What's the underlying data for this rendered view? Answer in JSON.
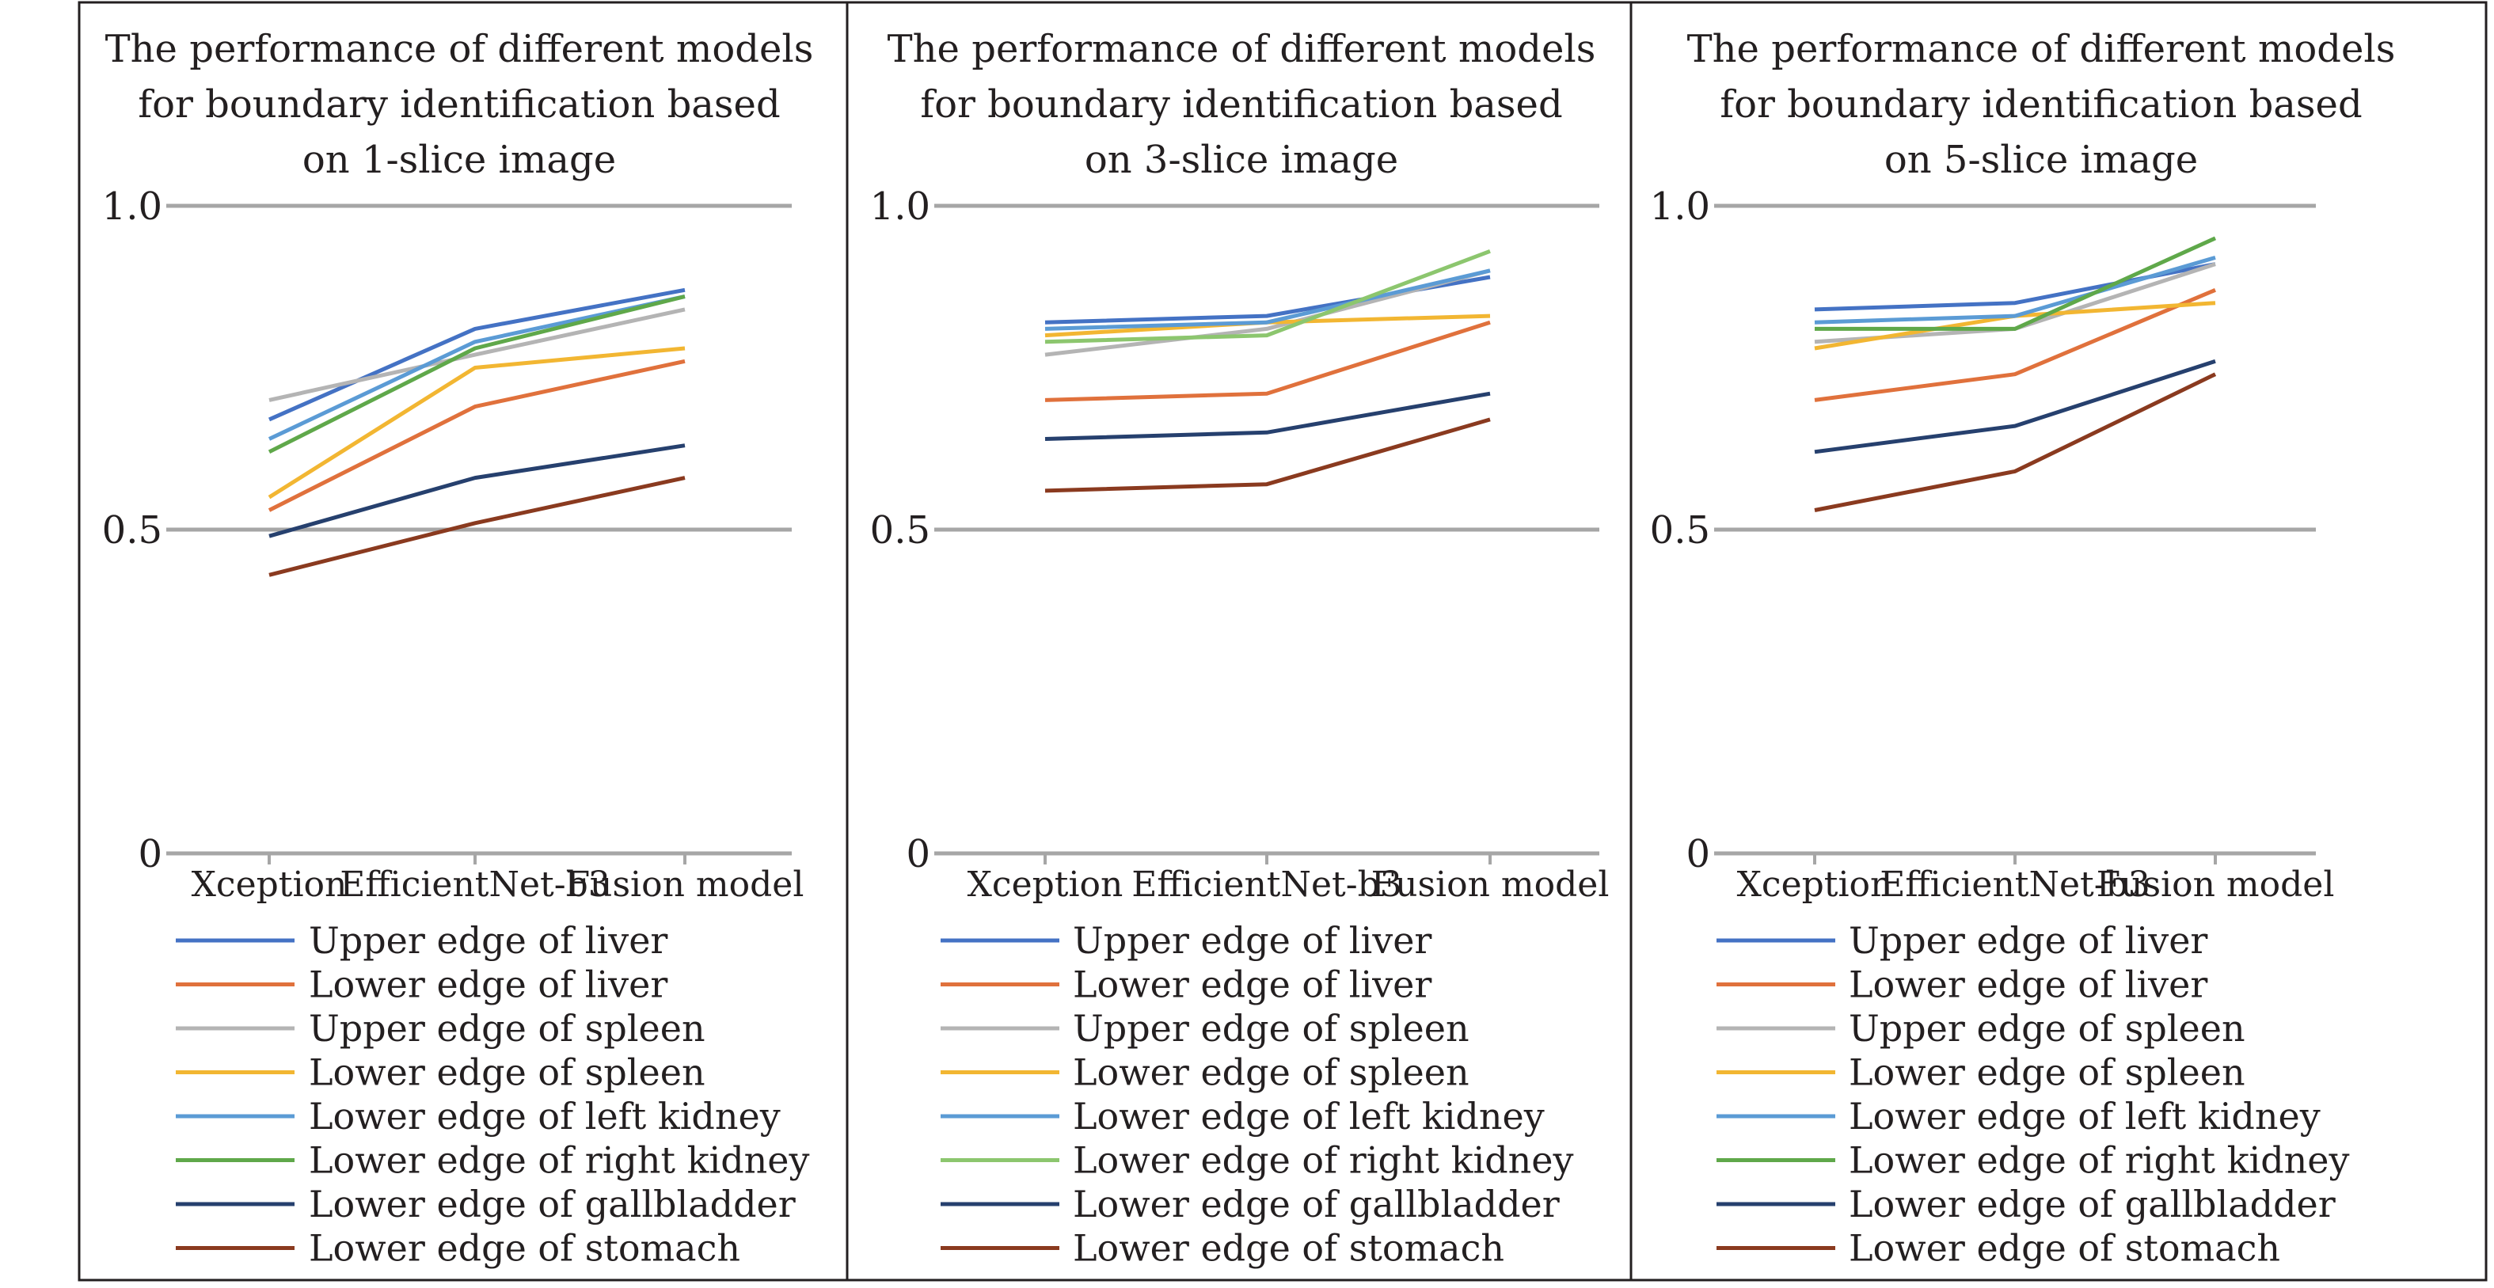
{
  "chart_data": [
    {
      "type": "line",
      "title_lines": [
        "The performance of different models",
        "for boundary identification based",
        "on 1-slice image"
      ],
      "categories": [
        "Xception",
        "EfficientNet-b3",
        "Fusion model"
      ],
      "ylim": [
        0,
        1.0
      ],
      "yticks": [
        "0",
        "0.5",
        "1.0"
      ],
      "grid": true,
      "legend_position": "bottom",
      "series": [
        {
          "name": "Upper edge of liver",
          "color": "#4472c4",
          "values": [
            0.67,
            0.81,
            0.87
          ]
        },
        {
          "name": "Lower edge of liver",
          "color": "#e0713c",
          "values": [
            0.53,
            0.69,
            0.76
          ]
        },
        {
          "name": "Upper edge of spleen",
          "color": "#b4b4b4",
          "values": [
            0.7,
            0.77,
            0.84
          ]
        },
        {
          "name": "Lower edge of spleen",
          "color": "#f2b632",
          "values": [
            0.55,
            0.75,
            0.78
          ]
        },
        {
          "name": "Lower edge of left kidney",
          "color": "#5b9bd5",
          "values": [
            0.64,
            0.79,
            0.86
          ]
        },
        {
          "name": "Lower edge of right kidney",
          "color": "#5fa84a",
          "values": [
            0.62,
            0.78,
            0.86
          ]
        },
        {
          "name": "Lower edge of gallbladder",
          "color": "#26406e",
          "values": [
            0.49,
            0.58,
            0.63
          ]
        },
        {
          "name": "Lower edge of stomach",
          "color": "#8a3a1f",
          "values": [
            0.43,
            0.51,
            0.58
          ]
        }
      ]
    },
    {
      "type": "line",
      "title_lines": [
        "The performance of different models",
        "for boundary identification based",
        "on 3-slice image"
      ],
      "categories": [
        "Xception",
        "EfficientNet-b3",
        "Fusion model"
      ],
      "ylim": [
        0,
        1.0
      ],
      "yticks": [
        "0",
        "0.5",
        "1.0"
      ],
      "grid": true,
      "legend_position": "bottom",
      "series": [
        {
          "name": "Upper edge of liver",
          "color": "#4472c4",
          "values": [
            0.82,
            0.83,
            0.89
          ]
        },
        {
          "name": "Lower edge of liver",
          "color": "#e0713c",
          "values": [
            0.7,
            0.71,
            0.82
          ]
        },
        {
          "name": "Upper edge of spleen",
          "color": "#b4b4b4",
          "values": [
            0.77,
            0.81,
            0.9
          ]
        },
        {
          "name": "Lower edge of spleen",
          "color": "#f2b632",
          "values": [
            0.8,
            0.82,
            0.83
          ]
        },
        {
          "name": "Lower edge of left kidney",
          "color": "#5b9bd5",
          "values": [
            0.81,
            0.82,
            0.9
          ]
        },
        {
          "name": "Lower edge of right kidney",
          "color": "#8cc66e",
          "values": [
            0.79,
            0.8,
            0.93
          ]
        },
        {
          "name": "Lower edge of gallbladder",
          "color": "#26406e",
          "values": [
            0.64,
            0.65,
            0.71
          ]
        },
        {
          "name": "Lower edge of stomach",
          "color": "#8a3a1f",
          "values": [
            0.56,
            0.57,
            0.67
          ]
        }
      ]
    },
    {
      "type": "line",
      "title_lines": [
        "The performance of different models",
        "for boundary identification based",
        "on 5-slice image"
      ],
      "categories": [
        "Xception",
        "EfficientNet-b3",
        "Fusion model"
      ],
      "ylim": [
        0,
        1.0
      ],
      "yticks": [
        "0",
        "0.5",
        "1.0"
      ],
      "grid": true,
      "legend_position": "bottom",
      "series": [
        {
          "name": "Upper edge of liver",
          "color": "#4472c4",
          "values": [
            0.84,
            0.85,
            0.91
          ]
        },
        {
          "name": "Lower edge of liver",
          "color": "#e0713c",
          "values": [
            0.7,
            0.74,
            0.87
          ]
        },
        {
          "name": "Upper edge of spleen",
          "color": "#b4b4b4",
          "values": [
            0.79,
            0.81,
            0.91
          ]
        },
        {
          "name": "Lower edge of spleen",
          "color": "#f2b632",
          "values": [
            0.78,
            0.83,
            0.85
          ]
        },
        {
          "name": "Lower edge of left kidney",
          "color": "#5b9bd5",
          "values": [
            0.82,
            0.83,
            0.92
          ]
        },
        {
          "name": "Lower edge of right kidney",
          "color": "#5fa84a",
          "values": [
            0.81,
            0.81,
            0.95
          ]
        },
        {
          "name": "Lower edge of gallbladder",
          "color": "#26406e",
          "values": [
            0.62,
            0.66,
            0.76
          ]
        },
        {
          "name": "Lower edge of stomach",
          "color": "#8a3a1f",
          "values": [
            0.53,
            0.59,
            0.74
          ]
        }
      ]
    }
  ]
}
